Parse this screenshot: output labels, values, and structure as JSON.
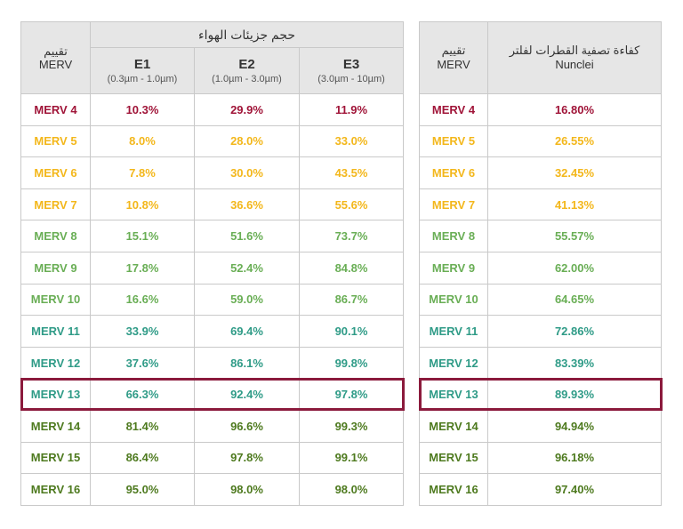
{
  "colors": {
    "red": "#a01438",
    "yellow": "#f3b71b",
    "lightgreen": "#69ae55",
    "teal": "#2f9b87",
    "darkgreen": "#4e7a1f",
    "highlight": "#8b1a3c"
  },
  "left_table": {
    "merv_header": "تقييم\nMERV",
    "group_header": "حجم جزيئات الهواء",
    "columns": [
      {
        "title": "E1",
        "range": "(0.3µm - 1.0µm)"
      },
      {
        "title": "E2",
        "range": "(1.0µm - 3.0µm)"
      },
      {
        "title": "E3",
        "range": "(3.0µm - 10µm)"
      }
    ]
  },
  "right_table": {
    "merv_header": "تقييم\nMERV",
    "efficiency_header": "كفاءة تصفية القطرات لفلتر\nNunclei"
  },
  "rows": [
    {
      "merv": "MERV 4",
      "e1": "10.3%",
      "e2": "29.9%",
      "e3": "11.9%",
      "eff": "16.80%",
      "color": "red"
    },
    {
      "merv": "MERV 5",
      "e1": "8.0%",
      "e2": "28.0%",
      "e3": "33.0%",
      "eff": "26.55%",
      "color": "yellow"
    },
    {
      "merv": "MERV 6",
      "e1": "7.8%",
      "e2": "30.0%",
      "e3": "43.5%",
      "eff": "32.45%",
      "color": "yellow"
    },
    {
      "merv": "MERV 7",
      "e1": "10.8%",
      "e2": "36.6%",
      "e3": "55.6%",
      "eff": "41.13%",
      "color": "yellow"
    },
    {
      "merv": "MERV 8",
      "e1": "15.1%",
      "e2": "51.6%",
      "e3": "73.7%",
      "eff": "55.57%",
      "color": "lightgreen"
    },
    {
      "merv": "MERV 9",
      "e1": "17.8%",
      "e2": "52.4%",
      "e3": "84.8%",
      "eff": "62.00%",
      "color": "lightgreen"
    },
    {
      "merv": "MERV 10",
      "e1": "16.6%",
      "e2": "59.0%",
      "e3": "86.7%",
      "eff": "64.65%",
      "color": "lightgreen"
    },
    {
      "merv": "MERV 11",
      "e1": "33.9%",
      "e2": "69.4%",
      "e3": "90.1%",
      "eff": "72.86%",
      "color": "teal"
    },
    {
      "merv": "MERV 12",
      "e1": "37.6%",
      "e2": "86.1%",
      "e3": "99.8%",
      "eff": "83.39%",
      "color": "teal"
    },
    {
      "merv": "MERV 13",
      "e1": "66.3%",
      "e2": "92.4%",
      "e3": "97.8%",
      "eff": "89.93%",
      "color": "teal",
      "highlighted": true
    },
    {
      "merv": "MERV 14",
      "e1": "81.4%",
      "e2": "96.6%",
      "e3": "99.3%",
      "eff": "94.94%",
      "color": "darkgreen"
    },
    {
      "merv": "MERV 15",
      "e1": "86.4%",
      "e2": "97.8%",
      "e3": "99.1%",
      "eff": "96.18%",
      "color": "darkgreen"
    },
    {
      "merv": "MERV 16",
      "e1": "95.0%",
      "e2": "98.0%",
      "e3": "98.0%",
      "eff": "97.40%",
      "color": "darkgreen"
    }
  ]
}
